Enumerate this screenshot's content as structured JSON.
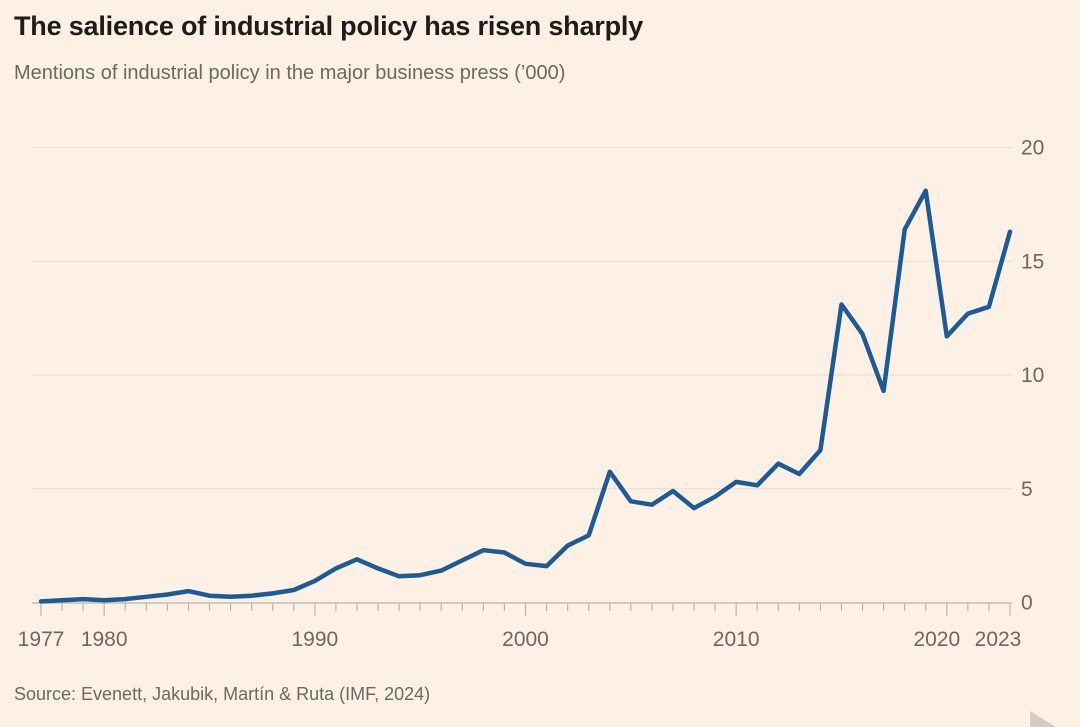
{
  "window": {
    "background_color": "#fdf0e4"
  },
  "chart_data": {
    "type": "line",
    "title": "The salience of industrial policy has risen sharply",
    "subtitle": "Mentions of industrial policy in the major business press (’000)",
    "source": "Source: Evenett, Jakubik, Martín & Ruta (IMF, 2024)",
    "xlabel": "",
    "ylabel": "",
    "x": [
      1977,
      1978,
      1979,
      1980,
      1981,
      1982,
      1983,
      1984,
      1985,
      1986,
      1987,
      1988,
      1989,
      1990,
      1991,
      1992,
      1993,
      1994,
      1995,
      1996,
      1997,
      1998,
      1999,
      2000,
      2001,
      2002,
      2003,
      2004,
      2005,
      2006,
      2007,
      2008,
      2009,
      2010,
      2011,
      2012,
      2013,
      2014,
      2015,
      2016,
      2017,
      2018,
      2019,
      2020,
      2021,
      2022,
      2023
    ],
    "series": [
      {
        "name": "Mentions of industrial policy in the major business press (thousands)",
        "values": [
          0.05,
          0.1,
          0.15,
          0.1,
          0.15,
          0.25,
          0.35,
          0.5,
          0.3,
          0.25,
          0.3,
          0.4,
          0.55,
          0.95,
          1.5,
          1.9,
          1.5,
          1.15,
          1.2,
          1.4,
          1.85,
          2.3,
          2.2,
          1.7,
          1.6,
          2.5,
          2.95,
          5.75,
          4.45,
          4.3,
          4.9,
          4.15,
          4.65,
          5.3,
          5.15,
          6.1,
          5.65,
          6.7,
          13.1,
          11.8,
          9.3,
          16.4,
          18.1,
          11.7,
          12.7,
          13.0,
          16.3
        ]
      }
    ],
    "ylim": [
      0,
      20
    ],
    "yticks": [
      0,
      5,
      10,
      15,
      20
    ],
    "ytick_side": "right",
    "xtick_labeled_years": [
      1977,
      1980,
      1990,
      2000,
      2010,
      2020,
      2023
    ],
    "xtick_minor": "every year",
    "grid": "horizontal only",
    "legend": "none",
    "colors": {
      "line": "#1e5a94",
      "gridline": "#e8dccf",
      "axis": "#bdb4aa",
      "tick_label": "#6e6861",
      "title": "#1e1b18",
      "subtitle": "#6e6861"
    }
  }
}
